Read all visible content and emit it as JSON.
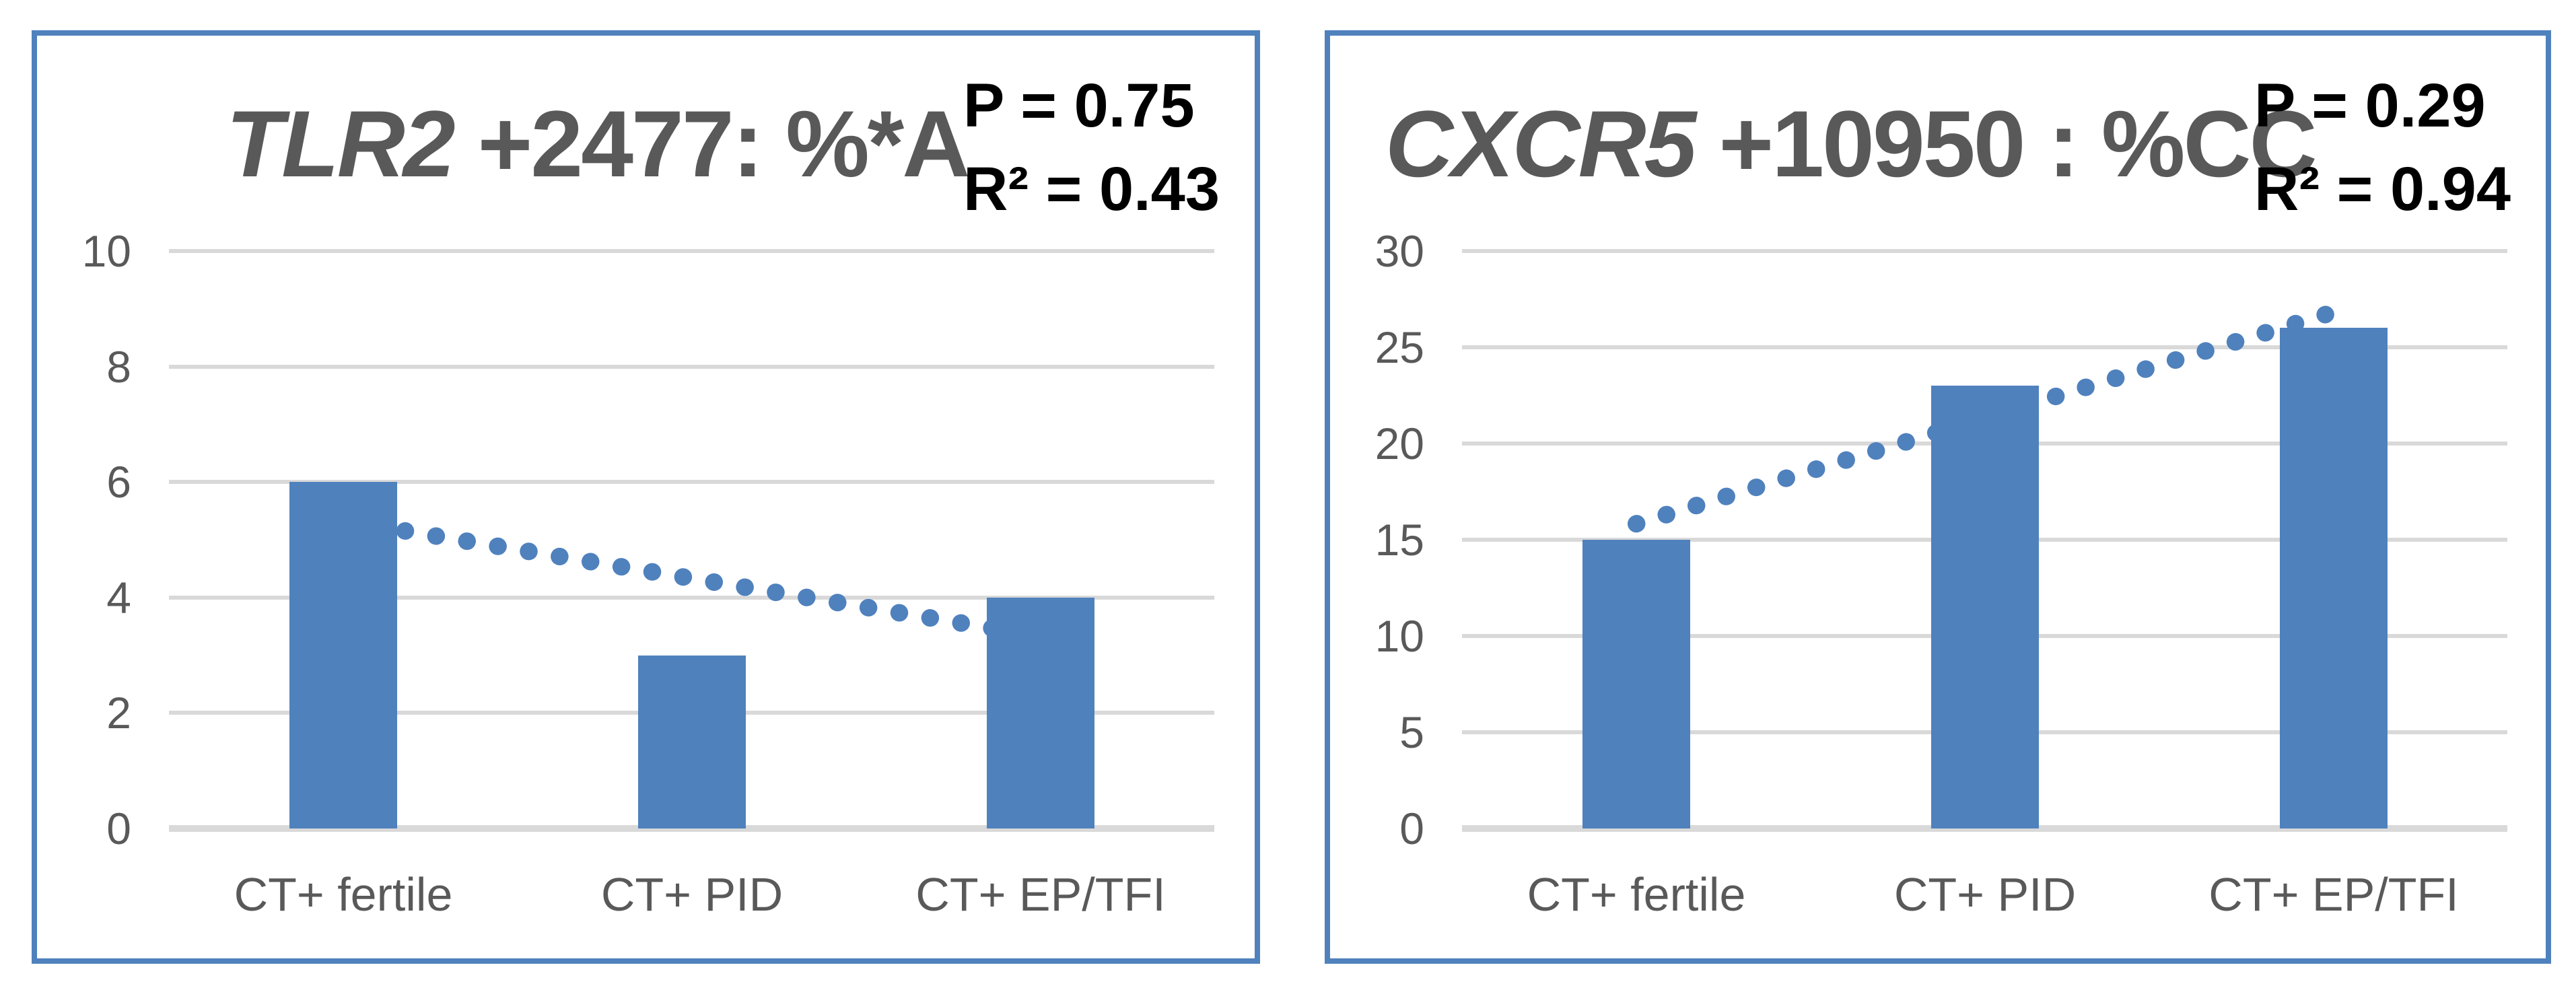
{
  "colors": {
    "bar_fill": "#4F81BD",
    "trendline": "#4F81BD",
    "panel_border": "#4F81BD",
    "gridline": "#D9D9D9",
    "axis_line": "#D9D9D9",
    "tick_label": "#595959",
    "category_label": "#595959",
    "title_text": "#595959",
    "stats_text": "#000000",
    "background": "#FFFFFF"
  },
  "chart_data": [
    {
      "type": "bar",
      "title": "TLR2 +2477: %*A",
      "title_gene": "TLR2",
      "title_rest": " +2477: %*A",
      "stats_lines": [
        "P = 0.75",
        "R² = 0.43"
      ],
      "categories": [
        "CT+ fertile",
        "CT+ PID",
        "CT+ EP/TFI"
      ],
      "values": [
        6,
        3,
        4
      ],
      "ylim": [
        0,
        10
      ],
      "y_ticks": [
        0,
        2,
        4,
        6,
        8,
        10
      ],
      "y_tick_labels": [
        "0",
        "2",
        "4",
        "6",
        "8",
        "10"
      ],
      "grid": true,
      "legend": "none",
      "trendline": {
        "type": "linear",
        "style": "dotted",
        "p": 0.75,
        "r_squared": 0.43,
        "y_start": 5.33,
        "y_end": 3.33
      }
    },
    {
      "type": "bar",
      "title": "CXCR5 +10950 : %CC",
      "title_gene": "CXCR5",
      "title_rest": " +10950 : %CC",
      "stats_lines": [
        "P = 0.29",
        "R² = 0.94"
      ],
      "categories": [
        "CT+ fertile",
        "CT+ PID",
        "CT+ EP/TFI"
      ],
      "values": [
        15,
        23,
        26
      ],
      "ylim": [
        0,
        30
      ],
      "y_ticks": [
        0,
        5,
        10,
        15,
        20,
        25,
        30
      ],
      "y_tick_labels": [
        "0",
        "5",
        "10",
        "15",
        "20",
        "25",
        "30"
      ],
      "grid": true,
      "legend": "none",
      "trendline": {
        "type": "linear",
        "style": "dotted",
        "p": 0.29,
        "r_squared": 0.94,
        "y_start": 15.83,
        "y_end": 26.83
      }
    }
  ]
}
